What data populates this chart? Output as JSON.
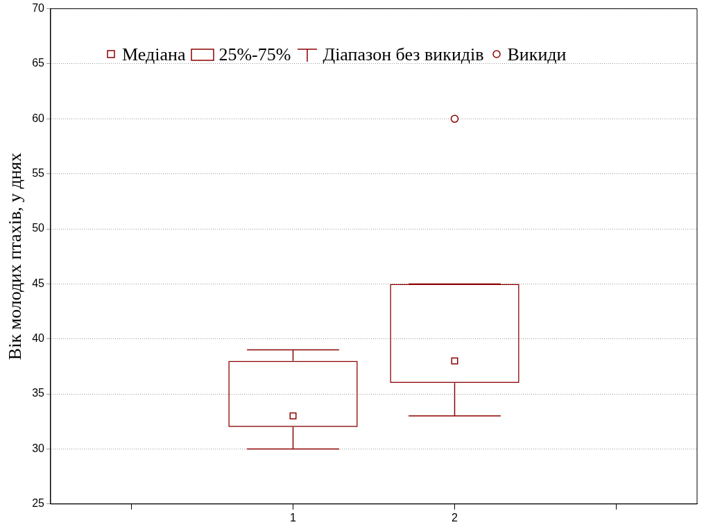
{
  "chart_data": {
    "type": "box",
    "ylabel": "Вік молодих птахів, у днях",
    "categories": [
      null,
      "1",
      "2",
      null
    ],
    "ylim": [
      25,
      70
    ],
    "yticks": [
      25,
      30,
      35,
      40,
      45,
      50,
      55,
      60,
      65,
      70
    ],
    "grid": "y",
    "marker": "square",
    "annotations": [
      "Медіана",
      "25%-75%",
      "Діапазон без викидів",
      "Викиди"
    ],
    "series": [
      {
        "color": "#8b0000",
        "boxes": [
          null,
          {
            "low": 30,
            "q1": 32,
            "median": 33,
            "q3": 38,
            "high": 39
          },
          {
            "low": 33,
            "q1": 36,
            "median": 38,
            "q3": 45,
            "high": 45,
            "outliers": [
              60
            ]
          },
          null
        ]
      }
    ]
  }
}
